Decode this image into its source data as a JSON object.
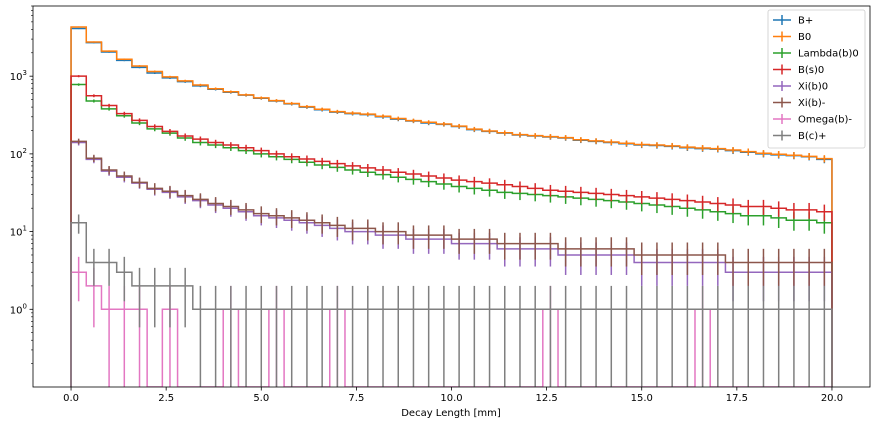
{
  "chart_data": {
    "type": "histogram-step",
    "xlabel": "Decay Length [mm]",
    "ylabel": "",
    "xlim": [
      -1,
      21
    ],
    "ylim": [
      0.1,
      8000
    ],
    "yscale": "log",
    "grid": false,
    "legend_position": "top-right",
    "x_ticks": [
      {
        "value": 0,
        "label": "0.0"
      },
      {
        "value": 2.5,
        "label": "2.5"
      },
      {
        "value": 5,
        "label": "5.0"
      },
      {
        "value": 7.5,
        "label": "7.5"
      },
      {
        "value": 10,
        "label": "10.0"
      },
      {
        "value": 12.5,
        "label": "12.5"
      },
      {
        "value": 15,
        "label": "15.0"
      },
      {
        "value": 17.5,
        "label": "17.5"
      },
      {
        "value": 20,
        "label": "20.0"
      }
    ],
    "y_ticks": [
      {
        "value": 1,
        "base": "10",
        "exp": "0"
      },
      {
        "value": 10,
        "base": "10",
        "exp": "1"
      },
      {
        "value": 100,
        "base": "10",
        "exp": "2"
      },
      {
        "value": 1000,
        "base": "10",
        "exp": "3"
      }
    ],
    "bin_edges": [
      0,
      20
    ],
    "n_bins": 50,
    "series": [
      {
        "name": "B+",
        "color": "#1f77b4",
        "values": [
          4100,
          2700,
          2050,
          1600,
          1300,
          1100,
          950,
          850,
          750,
          680,
          620,
          570,
          520,
          480,
          440,
          400,
          370,
          345,
          330,
          320,
          300,
          280,
          265,
          250,
          240,
          225,
          205,
          195,
          185,
          175,
          170,
          165,
          160,
          150,
          145,
          140,
          135,
          130,
          128,
          125,
          120,
          117,
          115,
          110,
          105,
          100,
          97,
          95,
          92,
          85
        ]
      },
      {
        "name": "B0",
        "color": "#ff7f0e",
        "values": [
          4300,
          2750,
          2100,
          1650,
          1350,
          1150,
          980,
          870,
          770,
          690,
          630,
          575,
          525,
          485,
          445,
          405,
          375,
          350,
          335,
          325,
          305,
          285,
          268,
          255,
          242,
          228,
          208,
          197,
          187,
          177,
          172,
          167,
          162,
          152,
          147,
          142,
          137,
          132,
          130,
          127,
          122,
          119,
          117,
          112,
          107,
          102,
          99,
          96,
          93,
          87
        ]
      },
      {
        "name": "Lambda(b)0",
        "color": "#2ca02c",
        "values": [
          780,
          480,
          380,
          310,
          250,
          210,
          185,
          160,
          140,
          130,
          120,
          110,
          100,
          92,
          85,
          78,
          72,
          67,
          62,
          58,
          54,
          50,
          47,
          44,
          41,
          38,
          36,
          34,
          32,
          31,
          30,
          29,
          28,
          27,
          26,
          25,
          24,
          23,
          22,
          21,
          20,
          19,
          18,
          17,
          16,
          16,
          15,
          14,
          14,
          13
        ]
      },
      {
        "name": "B(s)0",
        "color": "#d62728",
        "values": [
          1000,
          560,
          420,
          330,
          270,
          225,
          195,
          170,
          155,
          140,
          130,
          120,
          110,
          100,
          92,
          86,
          80,
          75,
          70,
          66,
          62,
          58,
          55,
          52,
          49,
          46,
          44,
          42,
          40,
          38,
          36,
          34,
          33,
          32,
          31,
          30,
          29,
          28,
          27,
          26,
          25,
          24,
          23,
          22,
          21,
          21,
          20,
          19,
          19,
          18
        ]
      },
      {
        "name": "Xi(b)0",
        "color": "#9467bd",
        "values": [
          140,
          85,
          60,
          50,
          42,
          35,
          32,
          28,
          25,
          22,
          20,
          18,
          16,
          15,
          14,
          13,
          12,
          11,
          10,
          10,
          9,
          9,
          8,
          8,
          8,
          7,
          7,
          7,
          6,
          6,
          6,
          6,
          5,
          5,
          5,
          5,
          5,
          4,
          4,
          4,
          4,
          4,
          4,
          3,
          3,
          3,
          3,
          3,
          3,
          3
        ]
      },
      {
        "name": "Xi(b)-",
        "color": "#8c564b",
        "values": [
          145,
          88,
          62,
          52,
          43,
          36,
          33,
          29,
          26,
          23,
          21,
          19,
          17,
          16,
          15,
          14,
          13,
          12,
          11,
          11,
          10,
          10,
          9,
          9,
          9,
          8,
          8,
          8,
          7,
          7,
          7,
          7,
          6,
          6,
          6,
          6,
          6,
          5,
          5,
          5,
          5,
          5,
          5,
          4,
          4,
          4,
          4,
          4,
          4,
          4
        ]
      },
      {
        "name": "Omega(b)-",
        "color": "#e377c2",
        "values": [
          3,
          2,
          1,
          1,
          1,
          0,
          1,
          0,
          0,
          0,
          1,
          0,
          0,
          1,
          0,
          0,
          0,
          1,
          0,
          0,
          0,
          0,
          0,
          0,
          0,
          0,
          0,
          0,
          0,
          0,
          0,
          1,
          0,
          0,
          0,
          0,
          0,
          0,
          0,
          0,
          0,
          1,
          0,
          0,
          0,
          0,
          0,
          0,
          0,
          0
        ]
      },
      {
        "name": "B(c)+",
        "color": "#7f7f7f",
        "values": [
          13,
          4,
          4,
          3,
          2,
          2,
          2,
          2,
          1,
          1,
          1,
          1,
          1,
          1,
          1,
          1,
          1,
          1,
          1,
          1,
          1,
          1,
          1,
          1,
          1,
          1,
          1,
          1,
          1,
          1,
          1,
          1,
          1,
          1,
          1,
          1,
          1,
          1,
          1,
          1,
          1,
          1,
          1,
          1,
          1,
          1,
          1,
          1,
          1,
          1
        ]
      }
    ]
  }
}
